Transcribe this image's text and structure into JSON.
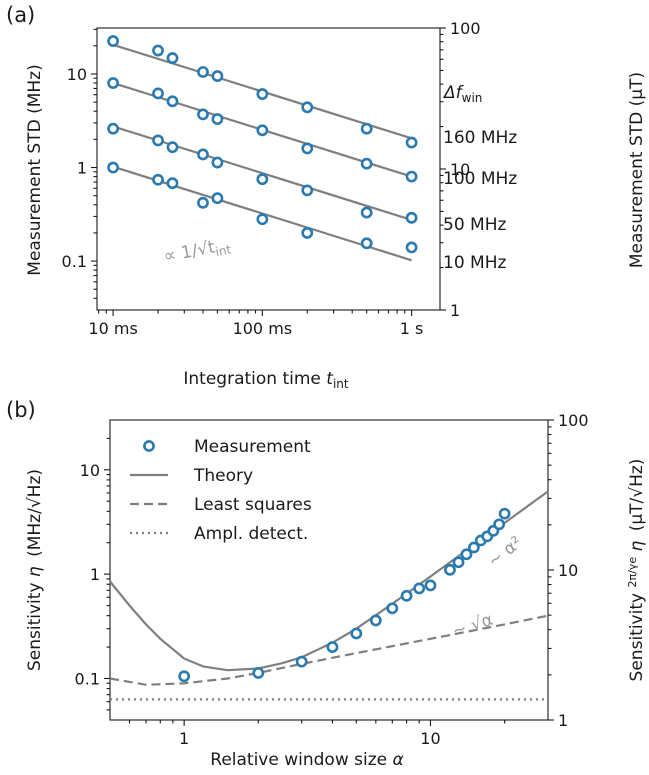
{
  "chart_data": [
    {
      "id": "a",
      "type": "scatter",
      "panel_label": "(a)",
      "xlabel": "Integration time",
      "xlabel_symbol": "t",
      "xlabel_sub": "int",
      "ylabel": "Measurement STD (MHz)",
      "y2label": "Measurement STD (µT)",
      "xscale": "log",
      "yscale": "log",
      "y2scale": "log",
      "xlim": [
        0.0078,
        1.55
      ],
      "ylim": [
        0.03,
        31
      ],
      "y2lim": [
        1,
        100
      ],
      "xticks": [
        {
          "v": 0.01,
          "label": "10 ms"
        },
        {
          "v": 0.1,
          "label": "100 ms"
        },
        {
          "v": 1,
          "label": "1 s"
        }
      ],
      "yticks": [
        {
          "v": 0.1,
          "label": "0.1"
        },
        {
          "v": 1,
          "label": "1"
        },
        {
          "v": 10,
          "label": "10"
        }
      ],
      "y2ticks": [
        {
          "v": 1,
          "label": "1"
        },
        {
          "v": 10,
          "label": "10"
        },
        {
          "v": 100,
          "label": "100"
        }
      ],
      "legend_title": "Δf",
      "legend_title_sub": "win",
      "scaling_annotation": "∝ 1/√t",
      "scaling_annotation_sub": "int",
      "series": [
        {
          "name": "160 MHz",
          "x": [
            0.01,
            0.02,
            0.025,
            0.04,
            0.05,
            0.1,
            0.2,
            0.5,
            1.0
          ],
          "y": [
            22.5,
            17.8,
            14.8,
            10.5,
            9.5,
            6.1,
            4.4,
            2.6,
            1.85
          ],
          "fit_y": [
            20.5,
            2.05
          ]
        },
        {
          "name": "100 MHz",
          "x": [
            0.01,
            0.02,
            0.025,
            0.04,
            0.05,
            0.1,
            0.2,
            0.5,
            1.0
          ],
          "y": [
            8.0,
            6.2,
            5.1,
            3.7,
            3.3,
            2.5,
            1.6,
            1.1,
            0.8
          ],
          "fit_y": [
            8.0,
            0.8
          ]
        },
        {
          "name": "50 MHz",
          "x": [
            0.01,
            0.02,
            0.025,
            0.04,
            0.05,
            0.1,
            0.2,
            0.5,
            1.0
          ],
          "y": [
            2.6,
            1.95,
            1.65,
            1.38,
            1.13,
            0.75,
            0.57,
            0.33,
            0.29
          ],
          "fit_y": [
            2.75,
            0.275
          ]
        },
        {
          "name": "10 MHz",
          "x": [
            0.01,
            0.02,
            0.025,
            0.04,
            0.05,
            0.1,
            0.2,
            0.5,
            1.0
          ],
          "y": [
            1.0,
            0.74,
            0.68,
            0.42,
            0.47,
            0.28,
            0.2,
            0.155,
            0.14
          ],
          "fit_y": [
            1.02,
            0.102
          ]
        }
      ]
    },
    {
      "id": "b",
      "type": "line",
      "panel_label": "(b)",
      "xlabel": "Relative window size",
      "xlabel_symbol": "α",
      "ylabel": "Sensitivity",
      "ylabel_symbol": "η",
      "ylabel_unit": "(MHz/√Hz)",
      "y2label": "Sensitivity",
      "y2label_frac_num": "2π",
      "y2label_frac_den": "γe",
      "y2label_symbol": "η",
      "y2label_unit": "(µT/√Hz)",
      "xscale": "log",
      "yscale": "log",
      "y2scale": "log",
      "xlim": [
        0.5,
        30
      ],
      "ylim": [
        0.04,
        30
      ],
      "y2lim": [
        1,
        100
      ],
      "xticks": [
        {
          "v": 1,
          "label": "1"
        },
        {
          "v": 10,
          "label": "10"
        }
      ],
      "yticks": [
        {
          "v": 0.1,
          "label": "0.1"
        },
        {
          "v": 1,
          "label": "1"
        },
        {
          "v": 10,
          "label": "10"
        }
      ],
      "y2ticks": [
        {
          "v": 1,
          "label": "1"
        },
        {
          "v": 10,
          "label": "10"
        },
        {
          "v": 100,
          "label": "100"
        }
      ],
      "legend_position": "top-left",
      "annotations": [
        {
          "text": "~ α²",
          "x": 18,
          "y": 1.15
        },
        {
          "text": "~ √α",
          "x": 12.5,
          "y": 0.25
        }
      ],
      "series": [
        {
          "name": "Measurement",
          "kind": "marker",
          "x": [
            1.0,
            2.0,
            3.0,
            4.0,
            5.0,
            6.0,
            7.0,
            8.0,
            9.0,
            10.0,
            12.0,
            13.0,
            14.0,
            15.0,
            16.0,
            17.0,
            18.0,
            19.0,
            20.0
          ],
          "y": [
            0.105,
            0.113,
            0.145,
            0.2,
            0.27,
            0.36,
            0.47,
            0.62,
            0.73,
            0.78,
            1.1,
            1.3,
            1.55,
            1.8,
            2.1,
            2.3,
            2.6,
            3.0,
            3.8
          ]
        },
        {
          "name": "Theory",
          "kind": "solid",
          "x": [
            0.5,
            0.6,
            0.7,
            0.8,
            1.0,
            1.2,
            1.5,
            2.0,
            2.5,
            3.0,
            4.0,
            5.0,
            7.0,
            10.0,
            15.0,
            20.0,
            30.0
          ],
          "y": [
            0.85,
            0.5,
            0.33,
            0.24,
            0.155,
            0.13,
            0.12,
            0.125,
            0.14,
            0.16,
            0.22,
            0.3,
            0.52,
            0.95,
            1.9,
            3.1,
            6.2
          ]
        },
        {
          "name": "Least squares",
          "kind": "dashed",
          "x": [
            0.5,
            0.7,
            1.0,
            1.5,
            2.0,
            3.0,
            5.0,
            10.0,
            20.0,
            30.0
          ],
          "y": [
            0.1,
            0.087,
            0.09,
            0.1,
            0.113,
            0.138,
            0.175,
            0.24,
            0.33,
            0.4
          ]
        },
        {
          "name": "Ampl. detect.",
          "kind": "dotted",
          "x": [
            0.5,
            30.0
          ],
          "y": [
            0.063,
            0.063
          ]
        }
      ]
    }
  ],
  "colors": {
    "marker_edge": "#2a7ab0",
    "line": "#7f7f7f",
    "annotation": "#999999",
    "axis": "#1a1a1a"
  }
}
